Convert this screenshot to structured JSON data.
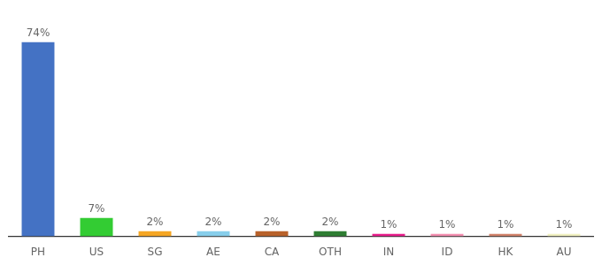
{
  "chart_data": {
    "type": "bar",
    "categories": [
      "PH",
      "US",
      "SG",
      "AE",
      "CA",
      "OTH",
      "IN",
      "ID",
      "HK",
      "AU"
    ],
    "values": [
      74,
      7,
      2,
      2,
      2,
      2,
      1,
      1,
      1,
      1
    ],
    "value_labels": [
      "74%",
      "7%",
      "2%",
      "2%",
      "2%",
      "2%",
      "1%",
      "1%",
      "1%",
      "1%"
    ],
    "colors": [
      "#4472C4",
      "#33CC33",
      "#F5A623",
      "#87CEEB",
      "#B8612A",
      "#2E7D32",
      "#E91E8C",
      "#F48FB1",
      "#D2836B",
      "#F0F0C0"
    ],
    "ylim": [
      0,
      82
    ],
    "grid": false,
    "data_labels": true,
    "tick_labels": "x"
  }
}
